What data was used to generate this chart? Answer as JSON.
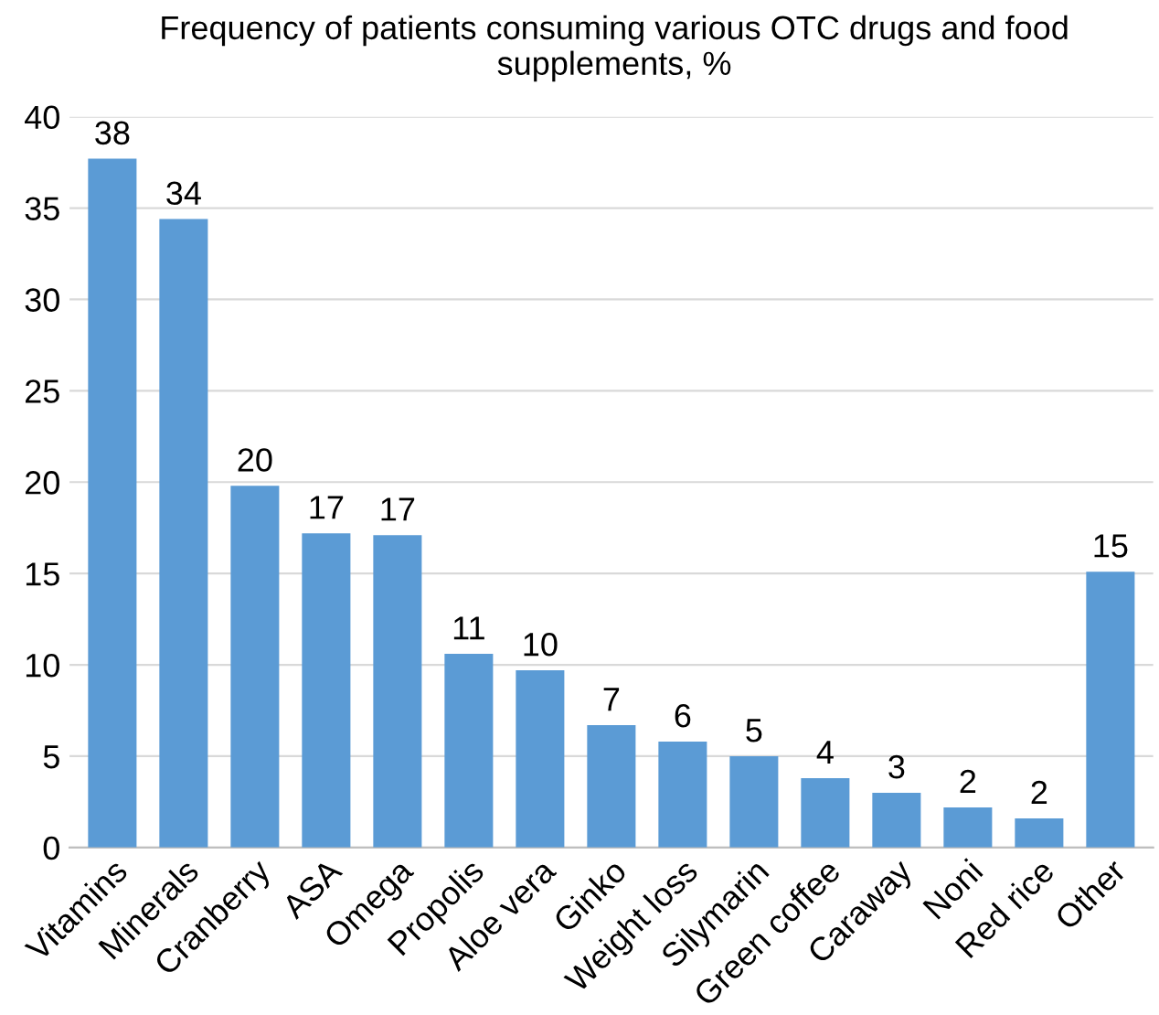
{
  "chart_data": {
    "type": "bar",
    "title": "Frequency of patients consuming various OTC drugs and food supplements, %",
    "categories": [
      "Vitamins",
      "Minerals",
      "Cranberry",
      "ASA",
      "Omega",
      "Propolis",
      "Aloe vera",
      "Ginko",
      "Weight loss",
      "Silymarin",
      "Green coffee",
      "Caraway",
      "Noni",
      "Red rice",
      "Other"
    ],
    "values": [
      37.7,
      34.4,
      19.8,
      17.2,
      17.1,
      10.6,
      9.7,
      6.7,
      5.8,
      5.0,
      3.8,
      3.0,
      2.2,
      1.6,
      15.1
    ],
    "value_labels": [
      "38",
      "34",
      "20",
      "17",
      "17",
      "11",
      "10",
      "7",
      "6",
      "5",
      "4",
      "3",
      "2",
      "2",
      "15"
    ],
    "color": "#5b9bd5",
    "ylim": [
      0,
      40
    ],
    "yticks": [
      0,
      5,
      10,
      15,
      20,
      25,
      30,
      35,
      40
    ],
    "grid": "y",
    "legend": false
  }
}
